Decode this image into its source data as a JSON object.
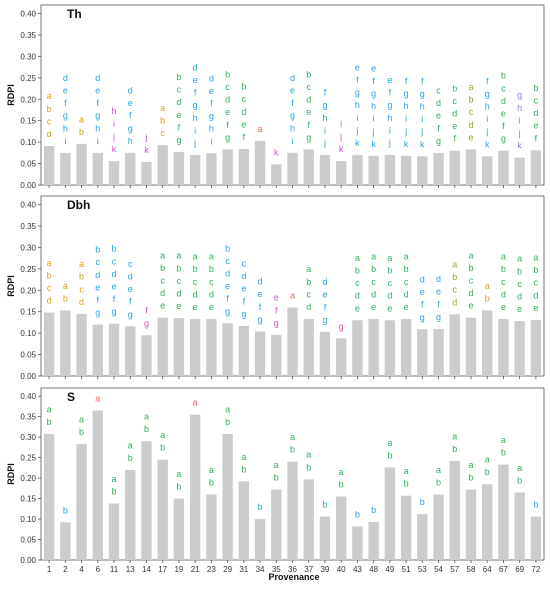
{
  "figure": {
    "xlabel": "Provenance",
    "ylabel": "RDPI",
    "provenances": [
      "1",
      "2",
      "4",
      "6",
      "11",
      "13",
      "14",
      "17",
      "19",
      "21",
      "23",
      "29",
      "31",
      "34",
      "35",
      "36",
      "37",
      "39",
      "40",
      "43",
      "48",
      "49",
      "51",
      "53",
      "54",
      "57",
      "58",
      "64",
      "67",
      "69",
      "72"
    ]
  },
  "chart_data": [
    {
      "type": "bar",
      "title": "Th",
      "ylabel": "RDPI",
      "xlabel": "",
      "ylim": [
        0,
        0.42
      ],
      "yticks": [
        "0.00",
        "0.05",
        "0.10",
        "0.15",
        "0.20",
        "0.25",
        "0.30",
        "0.35",
        "0.40"
      ],
      "categories": [
        "1",
        "2",
        "4",
        "6",
        "11",
        "13",
        "14",
        "17",
        "19",
        "21",
        "23",
        "29",
        "31",
        "34",
        "35",
        "36",
        "37",
        "39",
        "40",
        "43",
        "48",
        "49",
        "51",
        "53",
        "54",
        "57",
        "58",
        "64",
        "67",
        "69",
        "72"
      ],
      "values": [
        0.091,
        0.075,
        0.096,
        0.075,
        0.056,
        0.075,
        0.054,
        0.093,
        0.077,
        0.07,
        0.074,
        0.083,
        0.084,
        0.103,
        0.048,
        0.075,
        0.083,
        0.07,
        0.056,
        0.07,
        0.068,
        0.07,
        0.068,
        0.067,
        0.075,
        0.08,
        0.083,
        0.067,
        0.08,
        0.064,
        0.081
      ],
      "letters": [
        {
          "text": "abcd",
          "color": "#d9a020"
        },
        {
          "text": "defghi",
          "color": "#29a3e0"
        },
        {
          "text": "ab",
          "color": "#d9a020"
        },
        {
          "text": "defghi",
          "color": "#29a3e0"
        },
        {
          "text": "hijk",
          "color": "#d24fd0"
        },
        {
          "text": "defgh",
          "color": "#29a3e0"
        },
        {
          "text": "jk",
          "color": "#d24fd0"
        },
        {
          "text": "abc",
          "color": "#d9a020"
        },
        {
          "text": "bcdefg",
          "color": "#2fb05a"
        },
        {
          "text": "defghij",
          "color": "#29a3e0"
        },
        {
          "text": "defghi",
          "color": "#29a3e0"
        },
        {
          "text": "bcdefg",
          "color": "#2fb05a"
        },
        {
          "text": "bcdef",
          "color": "#2fb05a"
        },
        {
          "text": "a",
          "color": "#f0625b"
        },
        {
          "text": "k",
          "color": "#d24fd0"
        },
        {
          "text": "defghi",
          "color": "#29a3e0"
        },
        {
          "text": "bcdefg",
          "color": "#2fb05a"
        },
        {
          "text": "fghij",
          "color": "#29a3e0"
        },
        {
          "text": "ijk",
          "color": "#d24fd0"
        },
        {
          "text": "efghijk",
          "color": "#29a3e0"
        },
        {
          "text": "efghijk",
          "color": "#29a3e0"
        },
        {
          "text": "efghij",
          "color": "#29a3e0"
        },
        {
          "text": "fghijk",
          "color": "#29a3e0"
        },
        {
          "text": "fghijk",
          "color": "#29a3e0"
        },
        {
          "text": "cdefg",
          "color": "#2fb05a"
        },
        {
          "text": "bcdef",
          "color": "#2fb05a"
        },
        {
          "text": "abcde",
          "color": "#9aa523"
        },
        {
          "text": "fghijk",
          "color": "#29a3e0"
        },
        {
          "text": "bcdefg",
          "color": "#2fb05a"
        },
        {
          "text": "ghijk",
          "color": "#9b7be0"
        },
        {
          "text": "bcdef",
          "color": "#2fb05a"
        }
      ]
    },
    {
      "type": "bar",
      "title": "Dbh",
      "ylabel": "RDPI",
      "xlabel": "",
      "ylim": [
        0,
        0.42
      ],
      "yticks": [
        "0.00",
        "0.05",
        "0.10",
        "0.15",
        "0.20",
        "0.25",
        "0.30",
        "0.35",
        "0.40"
      ],
      "categories": [
        "1",
        "2",
        "4",
        "6",
        "11",
        "13",
        "14",
        "17",
        "19",
        "21",
        "23",
        "29",
        "31",
        "34",
        "35",
        "36",
        "37",
        "39",
        "40",
        "43",
        "48",
        "49",
        "51",
        "53",
        "54",
        "57",
        "58",
        "64",
        "67",
        "69",
        "72"
      ],
      "values": [
        0.148,
        0.153,
        0.145,
        0.12,
        0.122,
        0.116,
        0.095,
        0.136,
        0.135,
        0.133,
        0.133,
        0.123,
        0.117,
        0.104,
        0.096,
        0.16,
        0.133,
        0.103,
        0.088,
        0.13,
        0.133,
        0.13,
        0.133,
        0.109,
        0.11,
        0.144,
        0.136,
        0.153,
        0.133,
        0.128,
        0.131
      ],
      "letters": [
        {
          "text": "abcd",
          "color": "#d9a020"
        },
        {
          "text": "ab",
          "color": "#d9a020"
        },
        {
          "text": "abcd",
          "color": "#d9a020"
        },
        {
          "text": "bcdefg",
          "color": "#29a3e0"
        },
        {
          "text": "bcdefg",
          "color": "#29a3e0"
        },
        {
          "text": "cdefg",
          "color": "#29a3e0"
        },
        {
          "text": "fg",
          "color": "#d24fd0"
        },
        {
          "text": "abcde",
          "color": "#2fb05a"
        },
        {
          "text": "abcde",
          "color": "#2fb05a"
        },
        {
          "text": "abcde",
          "color": "#2fb05a"
        },
        {
          "text": "abcde",
          "color": "#2fb05a"
        },
        {
          "text": "bcdefg",
          "color": "#29a3e0"
        },
        {
          "text": "cdefg",
          "color": "#29a3e0"
        },
        {
          "text": "defg",
          "color": "#29a3e0"
        },
        {
          "text": "efg",
          "color": "#d24fd0"
        },
        {
          "text": "a",
          "color": "#f0625b"
        },
        {
          "text": "abcd",
          "color": "#2fb05a"
        },
        {
          "text": "defg",
          "color": "#29a3e0"
        },
        {
          "text": "g",
          "color": "#d24fd0"
        },
        {
          "text": "abcde",
          "color": "#2fb05a"
        },
        {
          "text": "abcde",
          "color": "#2fb05a"
        },
        {
          "text": "abcde",
          "color": "#2fb05a"
        },
        {
          "text": "abcde",
          "color": "#2fb05a"
        },
        {
          "text": "defg",
          "color": "#29a3e0"
        },
        {
          "text": "defg",
          "color": "#29a3e0"
        },
        {
          "text": "abcd",
          "color": "#9aa523"
        },
        {
          "text": "abcde",
          "color": "#2fb05a"
        },
        {
          "text": "ab",
          "color": "#d9a020"
        },
        {
          "text": "abcde",
          "color": "#2fb05a"
        },
        {
          "text": "abcde",
          "color": "#2fb05a"
        },
        {
          "text": "abcde",
          "color": "#2fb05a"
        }
      ]
    },
    {
      "type": "bar",
      "title": "S",
      "ylabel": "RDPI",
      "xlabel": "Provenance",
      "ylim": [
        0,
        0.42
      ],
      "yticks": [
        "0.00",
        "0.05",
        "0.10",
        "0.15",
        "0.20",
        "0.25",
        "0.30",
        "0.35",
        "0.40"
      ],
      "categories": [
        "1",
        "2",
        "4",
        "6",
        "11",
        "13",
        "14",
        "17",
        "19",
        "21",
        "23",
        "29",
        "31",
        "34",
        "35",
        "36",
        "37",
        "39",
        "40",
        "43",
        "48",
        "49",
        "51",
        "53",
        "54",
        "57",
        "58",
        "64",
        "67",
        "69",
        "72"
      ],
      "values": [
        0.308,
        0.092,
        0.283,
        0.365,
        0.138,
        0.22,
        0.29,
        0.245,
        0.15,
        0.355,
        0.16,
        0.308,
        0.192,
        0.1,
        0.172,
        0.24,
        0.197,
        0.106,
        0.155,
        0.082,
        0.093,
        0.226,
        0.157,
        0.112,
        0.16,
        0.242,
        0.172,
        0.185,
        0.233,
        0.165,
        0.106
      ],
      "letters": [
        {
          "text": "ab",
          "color": "#2fb05a"
        },
        {
          "text": "b",
          "color": "#29a3e0"
        },
        {
          "text": "ab",
          "color": "#2fb05a"
        },
        {
          "text": "a",
          "color": "#f0625b"
        },
        {
          "text": "ab",
          "color": "#2fb05a"
        },
        {
          "text": "ab",
          "color": "#2fb05a"
        },
        {
          "text": "ab",
          "color": "#2fb05a"
        },
        {
          "text": "ab",
          "color": "#2fb05a"
        },
        {
          "text": "ab",
          "color": "#2fb05a"
        },
        {
          "text": "a",
          "color": "#f0625b"
        },
        {
          "text": "ab",
          "color": "#2fb05a"
        },
        {
          "text": "ab",
          "color": "#2fb05a"
        },
        {
          "text": "ab",
          "color": "#2fb05a"
        },
        {
          "text": "b",
          "color": "#29a3e0"
        },
        {
          "text": "ab",
          "color": "#2fb05a"
        },
        {
          "text": "ab",
          "color": "#2fb05a"
        },
        {
          "text": "ab",
          "color": "#2fb05a"
        },
        {
          "text": "b",
          "color": "#29a3e0"
        },
        {
          "text": "ab",
          "color": "#2fb05a"
        },
        {
          "text": "b",
          "color": "#29a3e0"
        },
        {
          "text": "b",
          "color": "#29a3e0"
        },
        {
          "text": "ab",
          "color": "#2fb05a"
        },
        {
          "text": "ab",
          "color": "#2fb05a"
        },
        {
          "text": "b",
          "color": "#29a3e0"
        },
        {
          "text": "ab",
          "color": "#2fb05a"
        },
        {
          "text": "ab",
          "color": "#2fb05a"
        },
        {
          "text": "ab",
          "color": "#2fb05a"
        },
        {
          "text": "ab",
          "color": "#2fb05a"
        },
        {
          "text": "ab",
          "color": "#2fb05a"
        },
        {
          "text": "ab",
          "color": "#2fb05a"
        },
        {
          "text": "b",
          "color": "#29a3e0"
        }
      ]
    }
  ]
}
